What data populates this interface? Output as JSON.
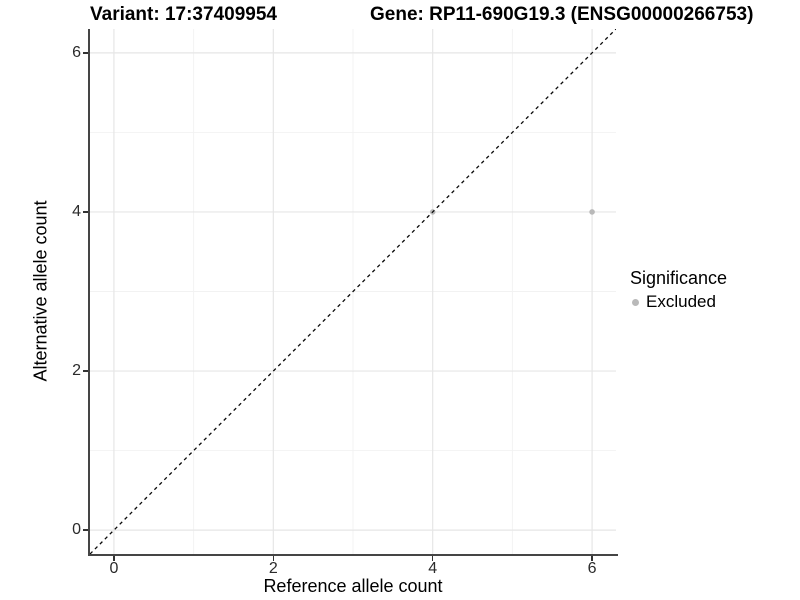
{
  "chart_data": {
    "type": "scatter",
    "title_left": "Variant: 17:37409954",
    "title_right": "Gene: RP11-690G19.3 (ENSG00000266753)",
    "xlabel": "Reference allele count",
    "ylabel": "Alternative allele count",
    "xlim": [
      -0.3,
      6.3
    ],
    "ylim": [
      -0.3,
      6.3
    ],
    "xticks": [
      0,
      2,
      4,
      6
    ],
    "yticks": [
      0,
      2,
      4,
      6
    ],
    "x_minor": [
      1,
      3,
      5
    ],
    "y_minor": [
      1,
      3,
      5
    ],
    "grid": {
      "major_color": "#e6e6e6",
      "minor_color": "#f2f2f2",
      "on": true
    },
    "identity_line": {
      "style": "dashed",
      "color": "#0a0a0a",
      "dash": "3.5 3.5",
      "width": 1.3
    },
    "series": [
      {
        "name": "Excluded",
        "color": "#b9b9b9",
        "points": [
          {
            "x": 4,
            "y": 4
          },
          {
            "x": 6,
            "y": 4
          }
        ],
        "point_radius": 2.8
      }
    ],
    "legend": {
      "title": "Significance",
      "position": "right",
      "items": [
        {
          "label": "Excluded",
          "color": "#b9b9b9"
        }
      ]
    },
    "axis_color": "#454545",
    "tick_color": "#333333"
  }
}
